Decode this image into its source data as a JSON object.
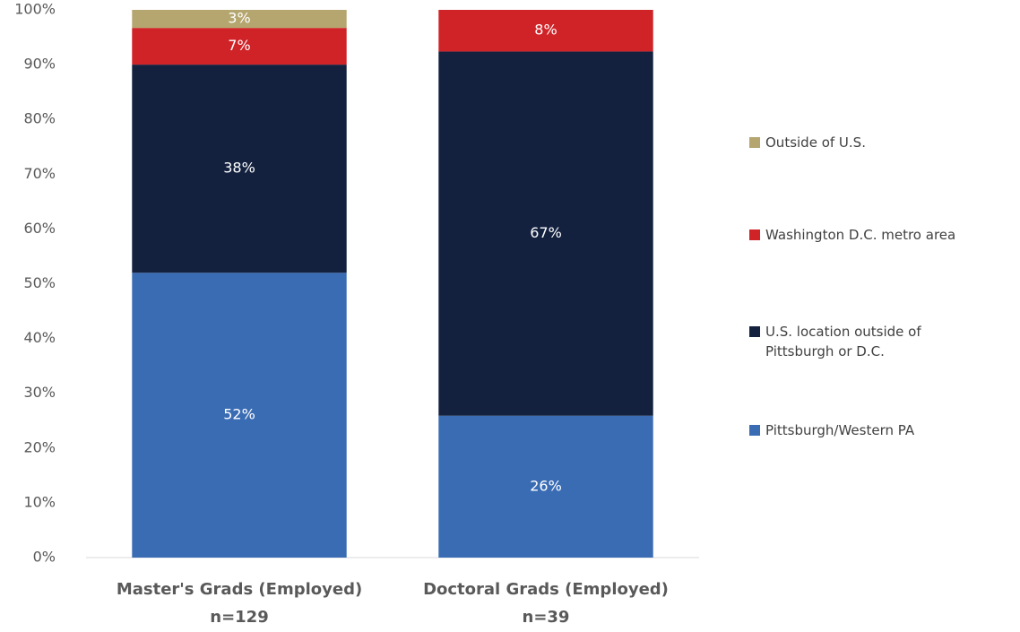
{
  "chart_data": {
    "type": "stacked_bar",
    "categories": [
      "Master's Grads (Employed)",
      "Doctoral Grads (Employed)"
    ],
    "category_notes": [
      "n=129",
      "n=39"
    ],
    "series": [
      {
        "name": "Pittsburgh/Western PA",
        "color": "#3a6cb4",
        "values": [
          52,
          25.9
        ],
        "value_labels": [
          "52%",
          "26%"
        ]
      },
      {
        "name": "U.S. location outside of Pittsburgh or D.C.",
        "color": "#13213f",
        "values": [
          38,
          66.5
        ],
        "value_labels": [
          "38%",
          "67%"
        ]
      },
      {
        "name": "Washington D.C. metro area",
        "color": "#cf2328",
        "values": [
          6.7,
          7.6
        ],
        "value_labels": [
          "7%",
          "8%"
        ]
      },
      {
        "name": "Outside of U.S.",
        "color": "#b5a66f",
        "values": [
          3.3,
          null
        ],
        "value_labels": [
          "3%",
          null
        ]
      }
    ],
    "ylim": [
      0,
      100
    ],
    "yticks": [
      {
        "value": 0,
        "label": "0%"
      },
      {
        "value": 10,
        "label": "10%"
      },
      {
        "value": 20,
        "label": "20%"
      },
      {
        "value": 30,
        "label": "30%"
      },
      {
        "value": 40,
        "label": "40%"
      },
      {
        "value": 50,
        "label": "50%"
      },
      {
        "value": 60,
        "label": "60%"
      },
      {
        "value": 70,
        "label": "70%"
      },
      {
        "value": 80,
        "label": "80%"
      },
      {
        "value": 90,
        "label": "90%"
      },
      {
        "value": 100,
        "label": "100%"
      }
    ],
    "grid": false,
    "legend": "right"
  }
}
